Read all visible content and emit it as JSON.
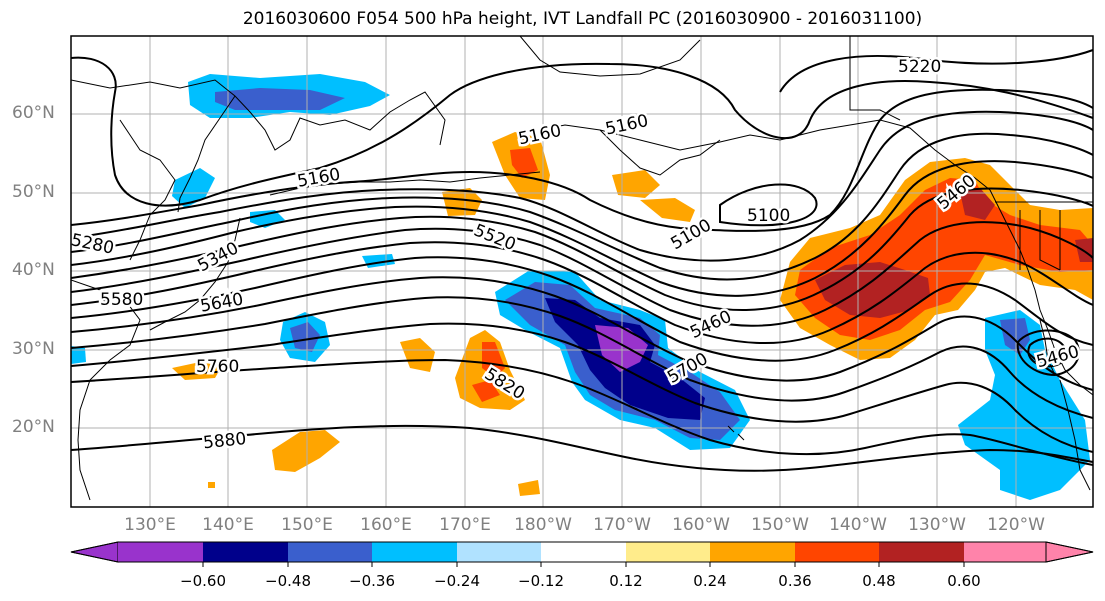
{
  "title": "2016030600 F054 500 hPa height, IVT Landfall PC (2016030900 - 2016031100)",
  "map": {
    "lat_labels": [
      "60°N",
      "50°N",
      "40°N",
      "30°N",
      "20°N"
    ],
    "lon_labels": [
      "130°E",
      "140°E",
      "150°E",
      "160°E",
      "170°E",
      "180°W",
      "170°W",
      "160°W",
      "150°W",
      "140°W",
      "130°W",
      "120°W"
    ],
    "contour_labels": [
      "5220",
      "5160",
      "5160",
      "5160",
      "5100",
      "5100",
      "5280",
      "5340",
      "5520",
      "5580",
      "5640",
      "5460",
      "5760",
      "5700",
      "5820",
      "5880",
      "5460",
      "5460"
    ]
  },
  "colorbar": {
    "ticks": [
      "−0.60",
      "−0.48",
      "−0.36",
      "−0.24",
      "−0.12",
      "0.12",
      "0.24",
      "0.36",
      "0.48",
      "0.60"
    ],
    "colors": [
      "#9933cc",
      "#00008b",
      "#3a5fcd",
      "#00bfff",
      "#b0e2ff",
      "#ffffff",
      "#ffec8b",
      "#ffa500",
      "#ff4500",
      "#b22222",
      "#ff83aa"
    ]
  }
}
